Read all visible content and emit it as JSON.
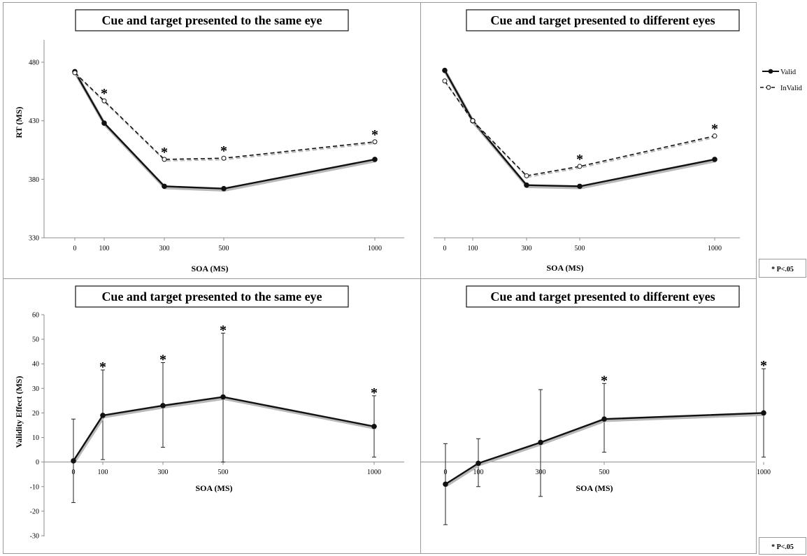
{
  "legend": {
    "valid": "Valid",
    "invalid": "InValid"
  },
  "significance_note": "* P<.05",
  "colors": {
    "line": "#111111",
    "panel_border": "#9a9a9a",
    "axis": "#8c8c8c"
  },
  "chart_data": [
    {
      "type": "line",
      "title": "Cue and target presented to the same eye",
      "xlabel": "SOA (MS)",
      "ylabel": "RT (MS)",
      "ylim": [
        330,
        500
      ],
      "yticks": [
        330,
        380,
        430,
        480
      ],
      "xticks": [
        0,
        100,
        300,
        500,
        1000
      ],
      "series": [
        {
          "name": "Valid",
          "x": [
            0,
            100,
            300,
            500,
            1000
          ],
          "y": [
            472,
            428,
            374,
            372,
            397
          ]
        },
        {
          "name": "InValid",
          "x": [
            0,
            100,
            300,
            500,
            1000
          ],
          "y": [
            471,
            447,
            397,
            398,
            412
          ]
        }
      ],
      "significant_x": [
        100,
        300,
        500,
        1000
      ]
    },
    {
      "type": "line",
      "title": "Cue and target presented to different eyes",
      "xlabel": "SOA (MS)",
      "ylabel": "",
      "ylim": [
        330,
        500
      ],
      "yticks": [],
      "xticks": [
        0,
        100,
        300,
        500,
        1000
      ],
      "series": [
        {
          "name": "Valid",
          "x": [
            0,
            100,
            300,
            500,
            1000
          ],
          "y": [
            473,
            430,
            375,
            374,
            397
          ]
        },
        {
          "name": "InValid",
          "x": [
            0,
            100,
            300,
            500,
            1000
          ],
          "y": [
            464,
            430,
            383,
            391,
            417
          ]
        }
      ],
      "significant_x": [
        500,
        1000
      ]
    },
    {
      "type": "line",
      "title": "Cue and target presented to the same eye",
      "xlabel": "SOA (MS)",
      "ylabel": "Validity Effect (MS)",
      "ylim": [
        -30,
        60
      ],
      "yticks": [
        -30,
        -20,
        -10,
        0,
        10,
        20,
        30,
        40,
        50,
        60
      ],
      "xticks": [
        0,
        100,
        300,
        500,
        1000
      ],
      "series": [
        {
          "x": [
            0,
            100,
            300,
            500,
            1000
          ],
          "y": [
            0.5,
            19,
            23,
            26.5,
            14.5
          ],
          "error_low": [
            -16.5,
            1,
            6,
            0,
            2
          ],
          "error_high": [
            17.5,
            37.5,
            40.5,
            52.5,
            27
          ]
        }
      ],
      "significant_x": [
        100,
        300,
        500,
        1000
      ]
    },
    {
      "type": "line",
      "title": "Cue and target presented to different eyes",
      "xlabel": "SOA (MS)",
      "ylabel": "",
      "ylim": [
        -30,
        60
      ],
      "yticks": [],
      "xticks": [
        0,
        100,
        300,
        500,
        1000
      ],
      "series": [
        {
          "x": [
            0,
            100,
            300,
            500,
            1000
          ],
          "y": [
            -9,
            -0.5,
            8,
            17.5,
            20
          ],
          "error_low": [
            -25.5,
            -10,
            -14,
            4,
            2
          ],
          "error_high": [
            7.5,
            9.5,
            29.5,
            32,
            38
          ]
        }
      ],
      "significant_x": [
        500,
        1000
      ]
    }
  ]
}
